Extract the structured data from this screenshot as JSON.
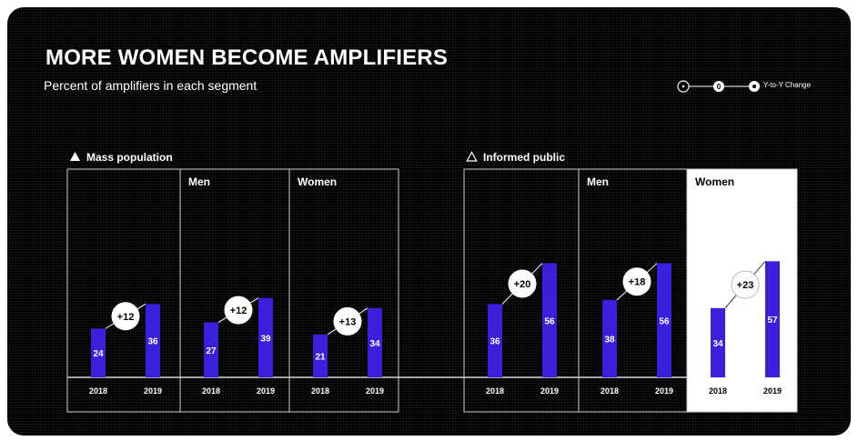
{
  "header": {
    "title": "MORE WOMEN BECOME AMPLIFIERS",
    "subtitle": "Percent of amplifiers in each segment"
  },
  "legend": {
    "label": "Y-to-Y Change",
    "marker_text": "0"
  },
  "sections": [
    {
      "label": "Mass population",
      "icon": "filled-triangle-icon"
    },
    {
      "label": "Informed public",
      "icon": "outline-triangle-icon"
    }
  ],
  "colors": {
    "bar": "#3a1fdc",
    "background": "#000000",
    "highlight_panel": "#ffffff",
    "text": "#ffffff"
  },
  "chart_data": {
    "type": "bar",
    "title": "MORE WOMEN BECOME AMPLIFIERS",
    "subtitle": "Percent of amplifiers in each segment",
    "categories": [
      "2018",
      "2019"
    ],
    "panels": [
      {
        "group": "Mass population",
        "segment": "",
        "values": [
          24,
          36
        ],
        "change": "+12",
        "highlight": false
      },
      {
        "group": "Mass population",
        "segment": "Men",
        "values": [
          27,
          39
        ],
        "change": "+12",
        "highlight": false
      },
      {
        "group": "Mass population",
        "segment": "Women",
        "values": [
          21,
          34
        ],
        "change": "+13",
        "highlight": false
      },
      {
        "group": "Informed public",
        "segment": "",
        "values": [
          36,
          56
        ],
        "change": "+20",
        "highlight": false
      },
      {
        "group": "Informed public",
        "segment": "Men",
        "values": [
          38,
          56
        ],
        "change": "+18",
        "highlight": false
      },
      {
        "group": "Informed public",
        "segment": "Women",
        "values": [
          34,
          57
        ],
        "change": "+23",
        "highlight": true
      }
    ],
    "ylim": [
      0,
      100
    ],
    "grid": false
  }
}
